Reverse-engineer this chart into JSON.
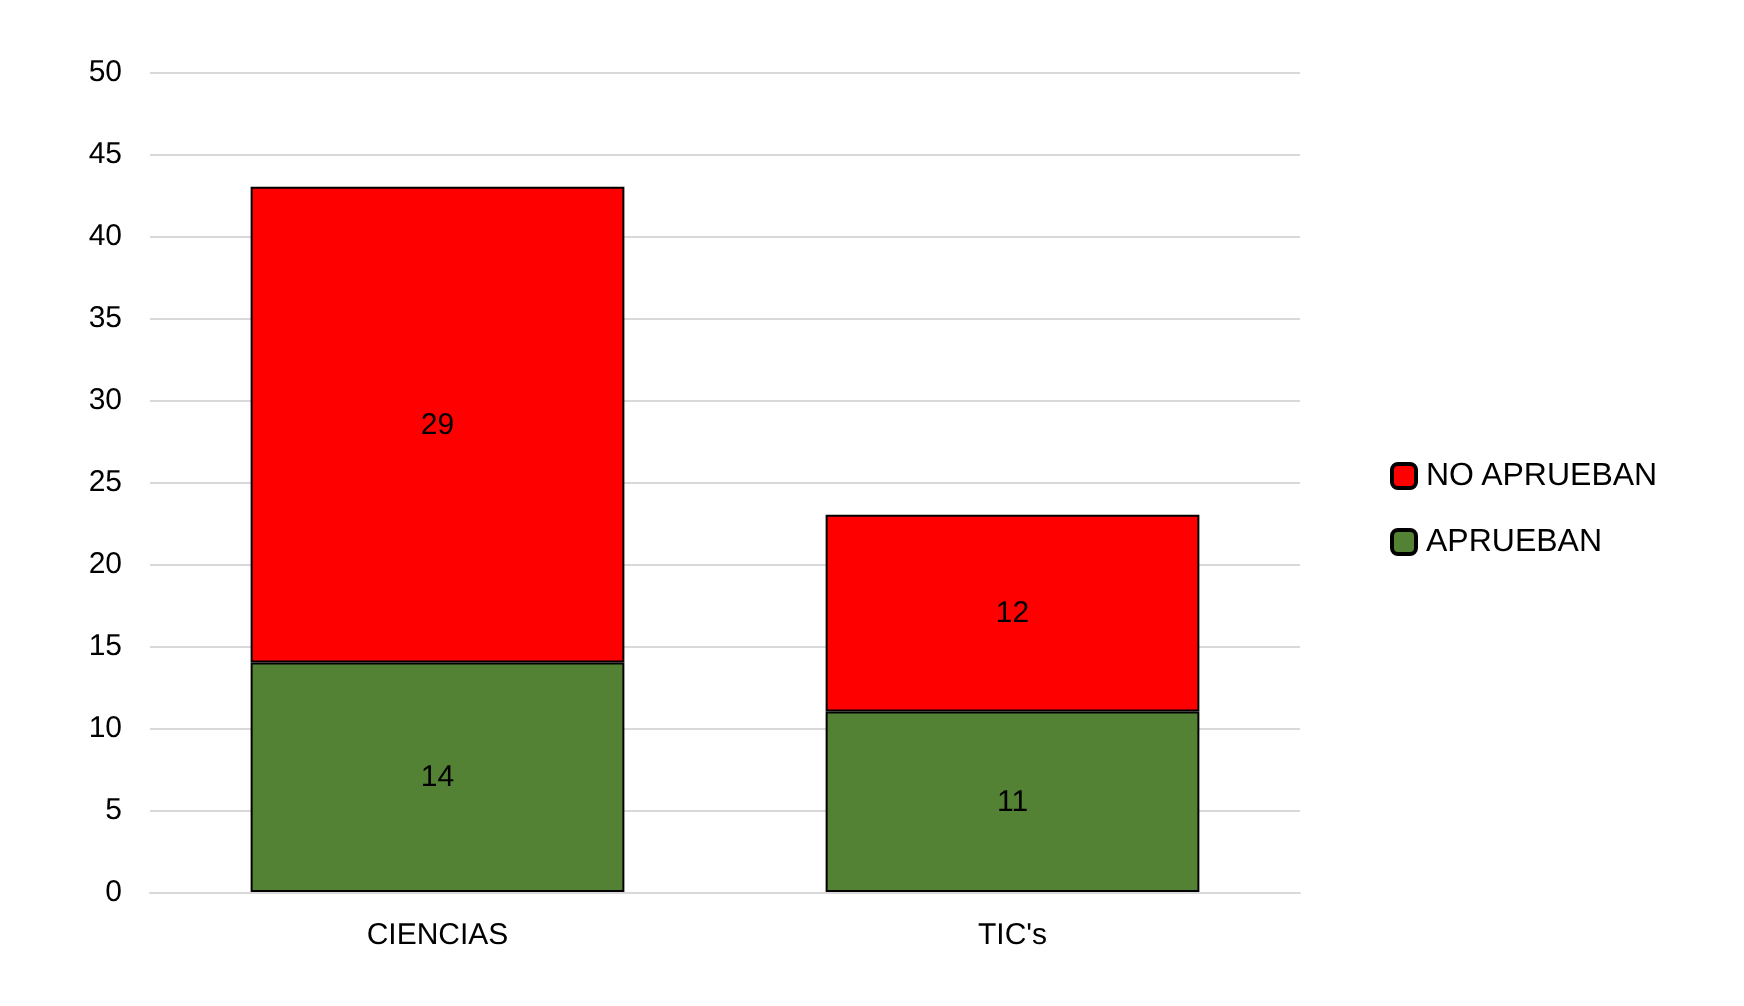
{
  "chart_data": {
    "type": "bar",
    "stacked": true,
    "categories": [
      "CIENCIAS",
      "TIC's"
    ],
    "series": [
      {
        "name": "APRUEBAN",
        "color": "#548235",
        "values": [
          14,
          11
        ]
      },
      {
        "name": "NO APRUEBAN",
        "color": "#ff0000",
        "values": [
          29,
          12
        ]
      }
    ],
    "ylim": [
      0,
      50
    ],
    "yticks": [
      0,
      5,
      10,
      15,
      20,
      25,
      30,
      35,
      40,
      45,
      50
    ],
    "grid": "y",
    "legend": "right",
    "data_labels": true
  }
}
